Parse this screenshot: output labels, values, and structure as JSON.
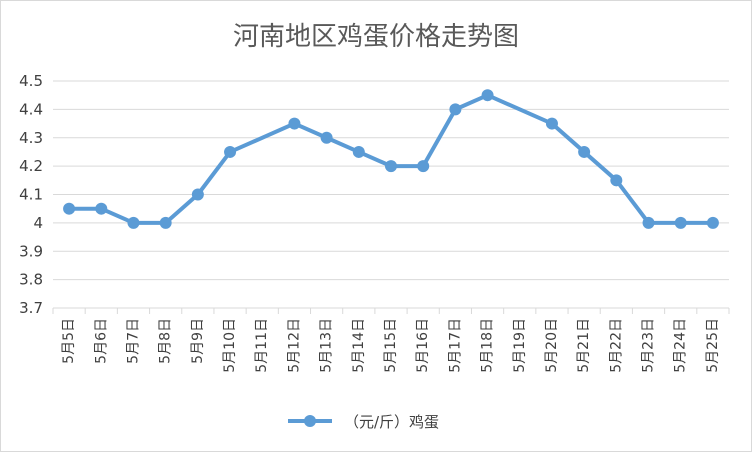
{
  "chart_data": {
    "type": "line",
    "title": "河南地区鸡蛋价格走势图",
    "categories": [
      "5月5日",
      "5月6日",
      "5月7日",
      "5月8日",
      "5月9日",
      "5月10日",
      "5月11日",
      "5月12日",
      "5月13日",
      "5月14日",
      "5月15日",
      "5月16日",
      "5月17日",
      "5月18日",
      "5月19日",
      "5月20日",
      "5月21日",
      "5月22日",
      "5月23日",
      "5月24日",
      "5月25日"
    ],
    "series": [
      {
        "name": "（元/斤）鸡蛋",
        "values": [
          4.05,
          4.05,
          4.0,
          4.0,
          4.1,
          4.25,
          null,
          4.35,
          4.3,
          4.25,
          4.2,
          4.2,
          4.4,
          4.45,
          null,
          4.35,
          4.25,
          4.15,
          4.0,
          4.0,
          4.0
        ]
      }
    ],
    "y_ticks": [
      "3.7",
      "3.8",
      "3.9",
      "4",
      "4.1",
      "4.2",
      "4.3",
      "4.4",
      "4.5"
    ],
    "ylim": [
      3.7,
      4.5
    ],
    "grid": true,
    "legend_position": "bottom",
    "line_color": "#5b9bd5",
    "gridline_color": "#d9d9d9"
  }
}
